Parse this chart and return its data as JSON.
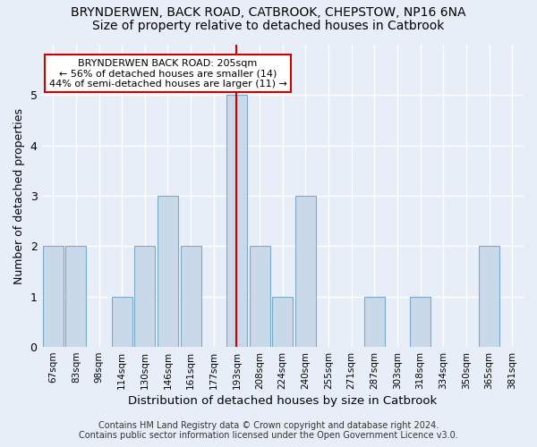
{
  "title1": "BRYNDERWEN, BACK ROAD, CATBROOK, CHEPSTOW, NP16 6NA",
  "title2": "Size of property relative to detached houses in Catbrook",
  "xlabel": "Distribution of detached houses by size in Catbrook",
  "ylabel": "Number of detached properties",
  "footer": "Contains HM Land Registry data © Crown copyright and database right 2024.\nContains public sector information licensed under the Open Government Licence v3.0.",
  "categories": [
    "67sqm",
    "83sqm",
    "98sqm",
    "114sqm",
    "130sqm",
    "146sqm",
    "161sqm",
    "177sqm",
    "193sqm",
    "208sqm",
    "224sqm",
    "240sqm",
    "255sqm",
    "271sqm",
    "287sqm",
    "303sqm",
    "318sqm",
    "334sqm",
    "350sqm",
    "365sqm",
    "381sqm"
  ],
  "values": [
    2,
    2,
    0,
    1,
    2,
    3,
    2,
    0,
    5,
    2,
    1,
    3,
    0,
    0,
    1,
    0,
    1,
    0,
    0,
    2,
    0
  ],
  "bar_color": "#c9d9ea",
  "bar_edge_color": "#7aaaca",
  "highlight_index": 8,
  "highlight_line_color": "#cc0000",
  "annotation_text": "BRYNDERWEN BACK ROAD: 205sqm\n← 56% of detached houses are smaller (14)\n44% of semi-detached houses are larger (11) →",
  "annotation_box_color": "#ffffff",
  "annotation_border_color": "#cc0000",
  "ylim": [
    0,
    6
  ],
  "yticks": [
    0,
    1,
    2,
    3,
    4,
    5,
    6
  ],
  "bg_color": "#e8eef8",
  "plot_bg_color": "#e8eef8",
  "grid_color": "#ffffff",
  "title1_fontsize": 10,
  "title2_fontsize": 10,
  "xlabel_fontsize": 9.5,
  "ylabel_fontsize": 9,
  "tick_fontsize": 7.5,
  "annotation_fontsize": 8,
  "footer_fontsize": 7
}
